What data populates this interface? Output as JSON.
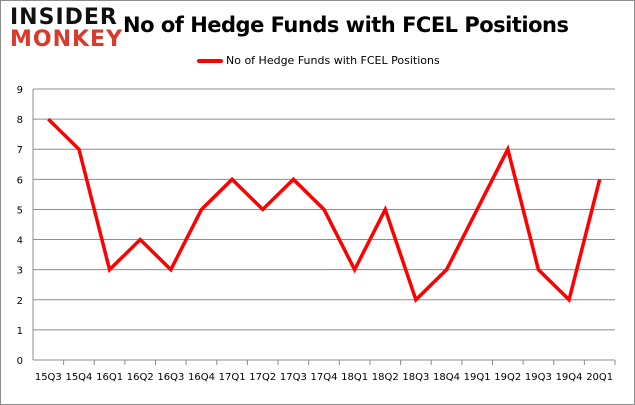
{
  "logo": {
    "line1": "INSIDER",
    "line2": "MONKEY"
  },
  "chart_data": {
    "type": "line",
    "title": "No of Hedge Funds with FCEL Positions",
    "xlabel": "",
    "ylabel": "",
    "categories": [
      "15Q3",
      "15Q4",
      "16Q1",
      "16Q2",
      "16Q3",
      "16Q4",
      "17Q1",
      "17Q2",
      "17Q3",
      "17Q4",
      "18Q1",
      "18Q2",
      "18Q3",
      "18Q4",
      "19Q1",
      "19Q2",
      "19Q3",
      "19Q4",
      "20Q1"
    ],
    "series": [
      {
        "name": "No of Hedge Funds with FCEL Positions",
        "color": "#ff0000",
        "values": [
          8,
          7,
          3,
          4,
          3,
          5,
          6,
          5,
          6,
          5,
          3,
          5,
          2,
          3,
          5,
          7,
          3,
          2,
          6
        ]
      }
    ],
    "ylim": [
      0,
      9
    ],
    "yticks": [
      0,
      1,
      2,
      3,
      4,
      5,
      6,
      7,
      8,
      9
    ],
    "grid": true,
    "legend": "top"
  }
}
